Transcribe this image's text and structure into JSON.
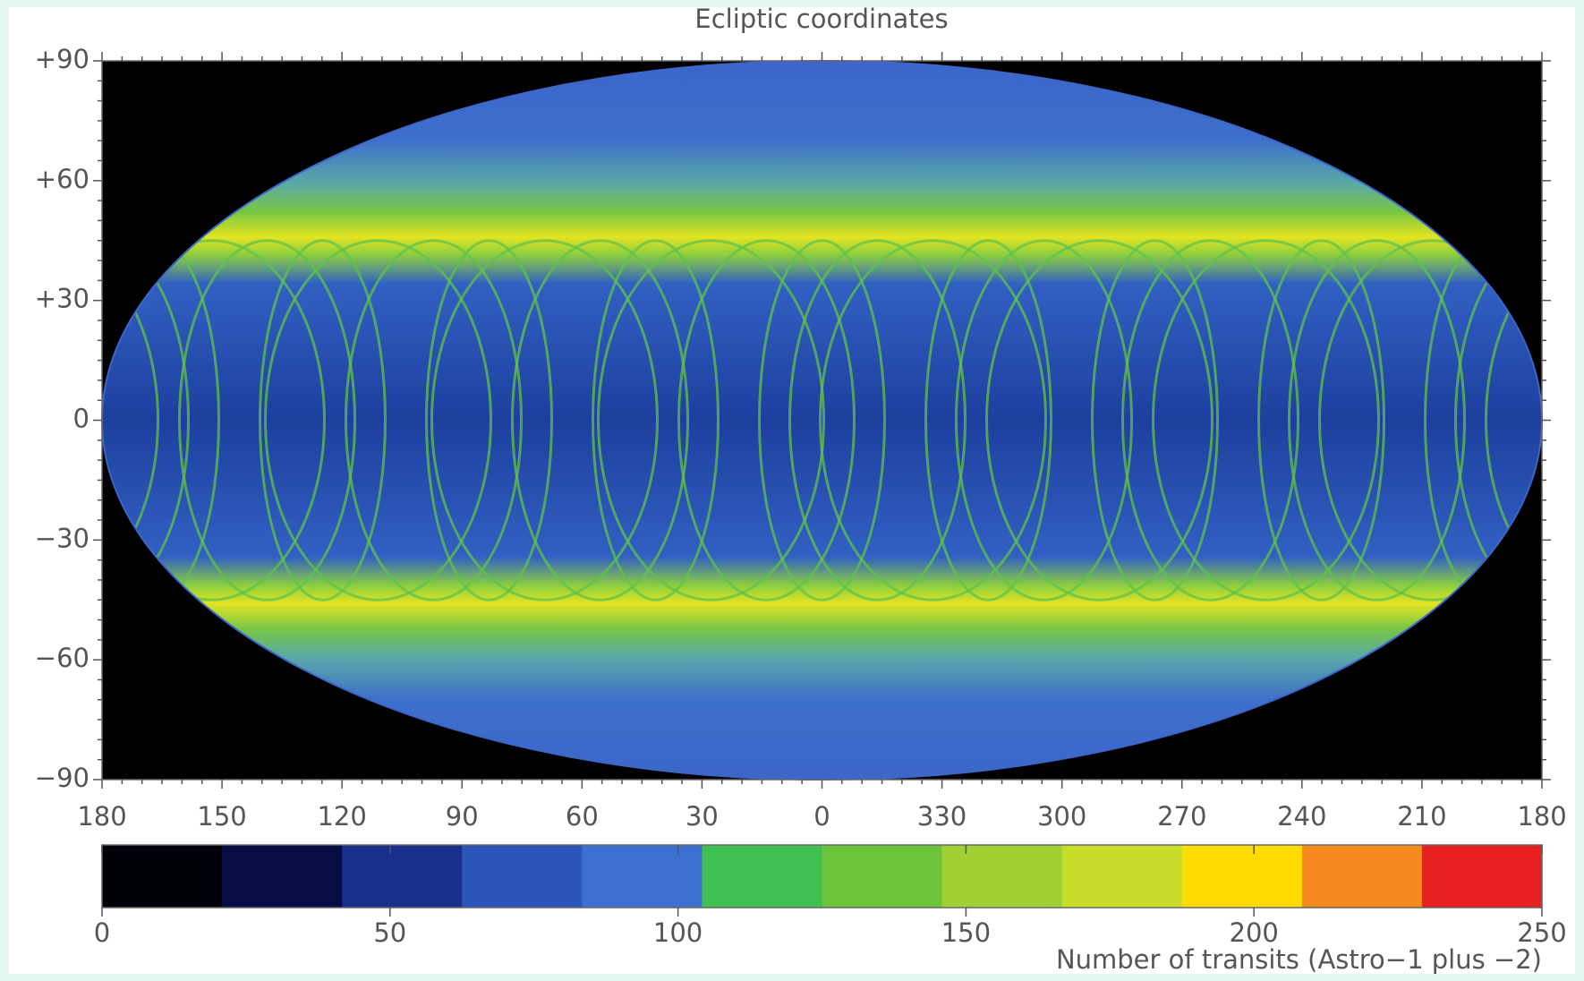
{
  "chart_data": {
    "type": "map",
    "title": "Ecliptic coordinates",
    "xlim": [
      180,
      -180
    ],
    "ylim": [
      -90,
      90
    ],
    "xticks": [
      180,
      150,
      120,
      90,
      60,
      30,
      0,
      {
        "value": -30,
        "label": "330"
      },
      {
        "value": -60,
        "label": "300"
      },
      {
        "value": -90,
        "label": "270"
      },
      {
        "value": -120,
        "label": "240"
      },
      {
        "value": -150,
        "label": "210"
      },
      {
        "value": -180,
        "label": "180"
      }
    ],
    "yticks": [
      {
        "value": 90,
        "label": "+90"
      },
      {
        "value": 60,
        "label": "+60"
      },
      {
        "value": 30,
        "label": "+30"
      },
      0,
      {
        "value": -30,
        "label": "−30"
      },
      {
        "value": -60,
        "label": "−60"
      },
      {
        "value": -90,
        "label": "−90"
      }
    ],
    "colorbar": {
      "label": "Number of transits (Astro−1 plus −2)",
      "lim": [
        0,
        250
      ],
      "ticks": [
        0,
        50,
        100,
        150,
        200,
        250
      ],
      "colors": [
        "#000008",
        "#070d44",
        "#1a2f8c",
        "#2b55b8",
        "#3c6fd0",
        "#40c050",
        "#6cc43a",
        "#a2cf34",
        "#c8dc2a",
        "#ffdc00",
        "#f68a1e",
        "#e82020"
      ]
    }
  }
}
